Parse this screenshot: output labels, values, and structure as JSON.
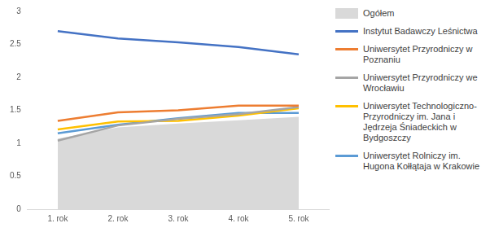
{
  "chart_data": {
    "type": "line",
    "categories": [
      "1. rok",
      "2. rok",
      "3. rok",
      "4. rok",
      "5. rok"
    ],
    "series": [
      {
        "name": "Ogółem",
        "type": "area",
        "color": "#d9d9d9",
        "values": [
          1.07,
          1.24,
          1.3,
          1.35,
          1.4
        ]
      },
      {
        "name": "Instytut Badawczy Leśnictwa",
        "color": "#4472c4",
        "values": [
          2.7,
          2.59,
          2.53,
          2.46,
          2.35
        ]
      },
      {
        "name": "Uniwersytet Przyrodniczy w Poznaniu",
        "color": "#ed7d31",
        "values": [
          1.34,
          1.47,
          1.5,
          1.57,
          1.57
        ]
      },
      {
        "name": "Uniwersytet Przyrodniczy we Wrocławiu",
        "color": "#a5a5a5",
        "values": [
          1.04,
          1.27,
          1.37,
          1.44,
          1.55
        ]
      },
      {
        "name": "Uniwersytet Technologiczno-Przyrodniczy im. Jana i Jędrzeja Śniadeckich w Bydgoszczy",
        "color": "#ffc000",
        "values": [
          1.21,
          1.33,
          1.34,
          1.42,
          1.53
        ]
      },
      {
        "name": "Uniwersytet Rolniczy im. Hugona Kołłątaja w Krakowie",
        "color": "#5b9bd5",
        "values": [
          1.15,
          1.28,
          1.38,
          1.46,
          1.46
        ]
      }
    ],
    "ylim": [
      0,
      3
    ],
    "yticks": [
      0,
      0.5,
      1,
      1.5,
      2,
      2.5,
      3
    ],
    "grid": false,
    "legend": "right"
  }
}
